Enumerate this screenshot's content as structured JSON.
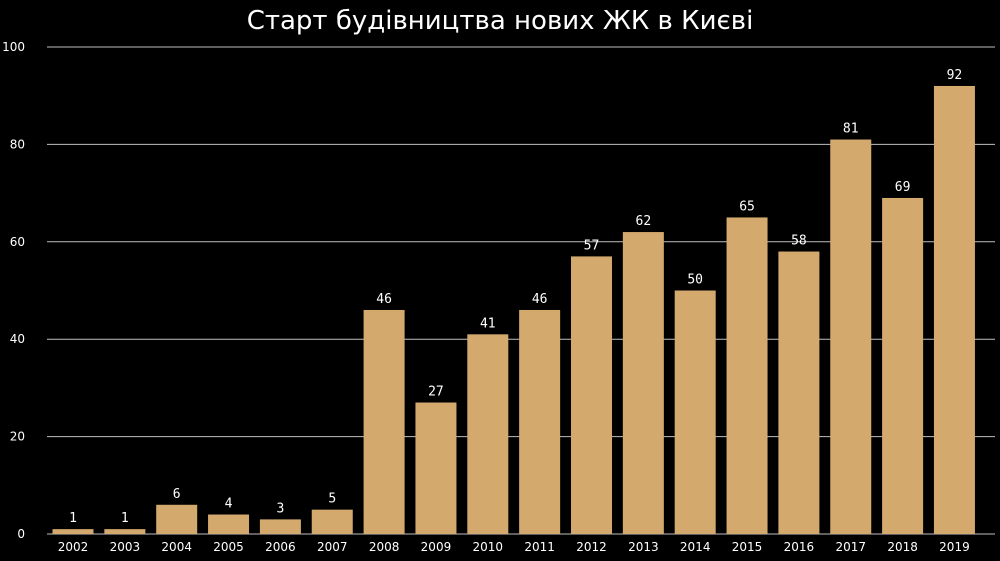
{
  "chart_data": {
    "type": "bar",
    "title": "Старт будівництва нових ЖК в Києві",
    "categories": [
      "2002",
      "2003",
      "2004",
      "2005",
      "2006",
      "2007",
      "2008",
      "2009",
      "2010",
      "2011",
      "2012",
      "2013",
      "2014",
      "2015",
      "2016",
      "2017",
      "2018",
      "2019"
    ],
    "values": [
      1,
      1,
      6,
      4,
      3,
      5,
      46,
      27,
      41,
      46,
      57,
      62,
      50,
      65,
      58,
      81,
      69,
      92
    ],
    "data_labels": [
      "1",
      "1",
      "6",
      "4",
      "3",
      "5",
      "46",
      "27",
      "41",
      "46",
      "57",
      "62",
      "50",
      "65",
      "58",
      "81",
      "69",
      "92"
    ],
    "ylim": [
      0,
      100
    ],
    "yticks": [
      0,
      20,
      40,
      60,
      80,
      100
    ],
    "ytick_labels": [
      "0",
      "20",
      "40",
      "60",
      "80",
      "100"
    ],
    "grid": true,
    "legend": "none",
    "colors": {
      "background": "#000000",
      "bar": "#d4a96e",
      "grid": "#bfbfbf",
      "text": "#ffffff"
    }
  }
}
